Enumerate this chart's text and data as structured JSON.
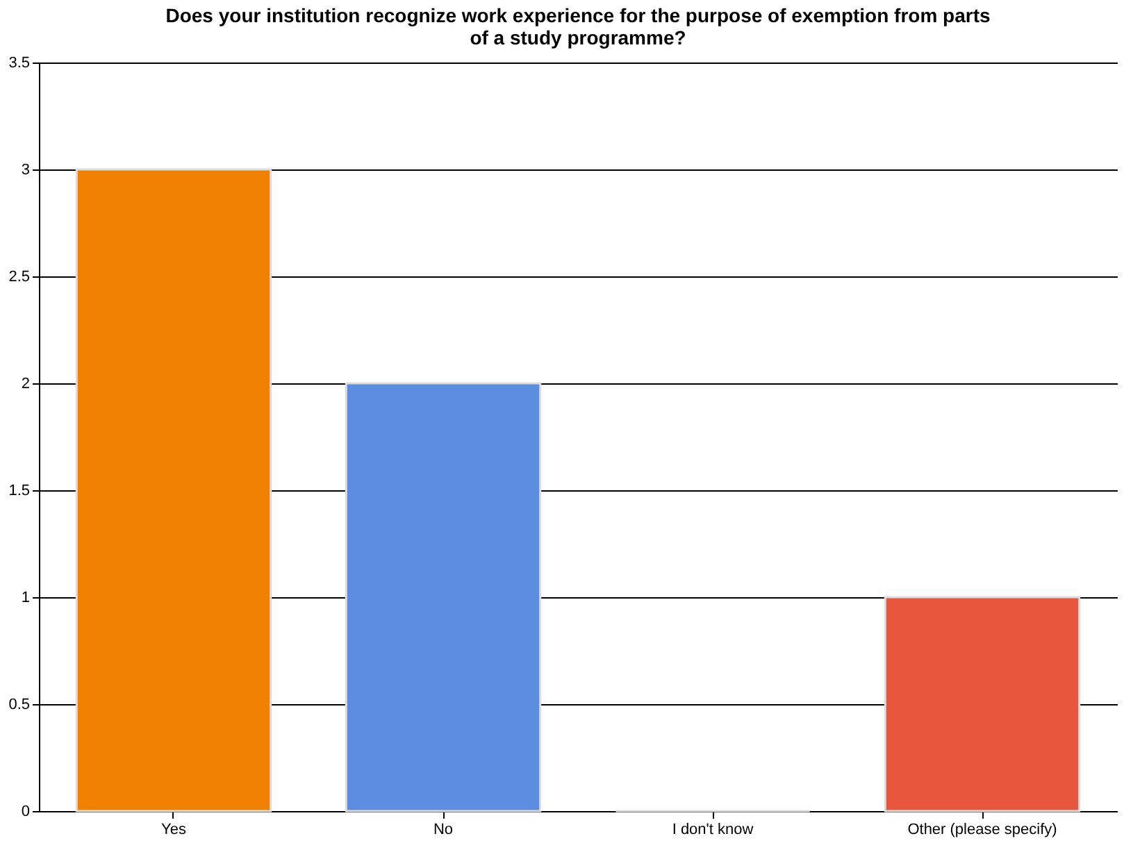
{
  "chart_data": {
    "type": "bar",
    "title": "Does your institution recognize work experience for the purpose of exemption from parts of a study programme?",
    "categories": [
      "Yes",
      "No",
      "I don't know",
      "Other (please specify)"
    ],
    "values": [
      3,
      2,
      0,
      1
    ],
    "colors": [
      "#f08000",
      "#5b8de0",
      "#dddddd",
      "#e8563e"
    ],
    "ylim": [
      0,
      3.5
    ],
    "yticks": [
      0,
      0.5,
      1,
      1.5,
      2,
      2.5,
      3,
      3.5
    ],
    "grid": "y"
  }
}
